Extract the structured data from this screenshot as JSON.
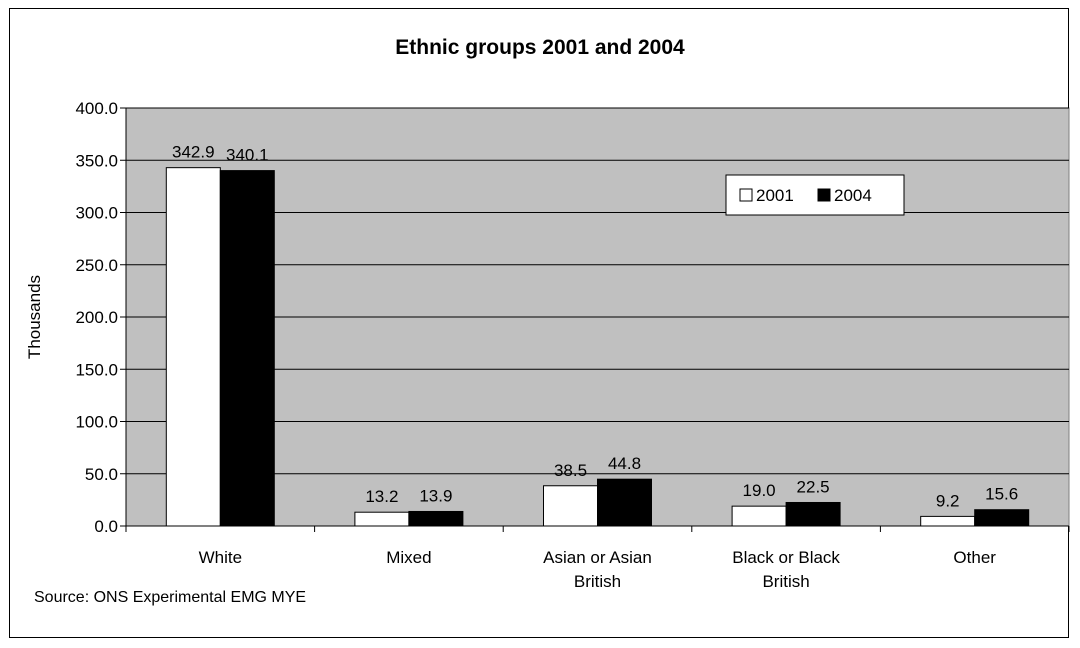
{
  "chart_data": {
    "type": "bar",
    "title": "Ethnic groups 2001 and 2004",
    "ylabel": "Thousands",
    "xlabel": "",
    "ylim": [
      0,
      400
    ],
    "ytick_step": 50,
    "ytick_labels": [
      "0.0",
      "50.0",
      "100.0",
      "150.0",
      "200.0",
      "250.0",
      "300.0",
      "350.0",
      "400.0"
    ],
    "grid": true,
    "legend_position": "top-right",
    "categories": [
      [
        "White"
      ],
      [
        "Mixed"
      ],
      [
        "Asian or Asian",
        "British"
      ],
      [
        "Black or Black",
        "British"
      ],
      [
        "Other"
      ]
    ],
    "series": [
      {
        "name": "2001",
        "color": "#ffffff",
        "values": [
          342.9,
          13.2,
          38.5,
          19.0,
          9.2
        ],
        "labels": [
          "342.9",
          "13.2",
          "38.5",
          "19.0",
          "9.2"
        ]
      },
      {
        "name": "2004",
        "color": "#000000",
        "values": [
          340.1,
          13.9,
          44.8,
          22.5,
          15.6
        ],
        "labels": [
          "340.1",
          "13.9",
          "44.8",
          "22.5",
          "15.6"
        ]
      }
    ],
    "plot_background": "#c0c0c0",
    "source": "Source: ONS Experimental EMG MYE"
  }
}
